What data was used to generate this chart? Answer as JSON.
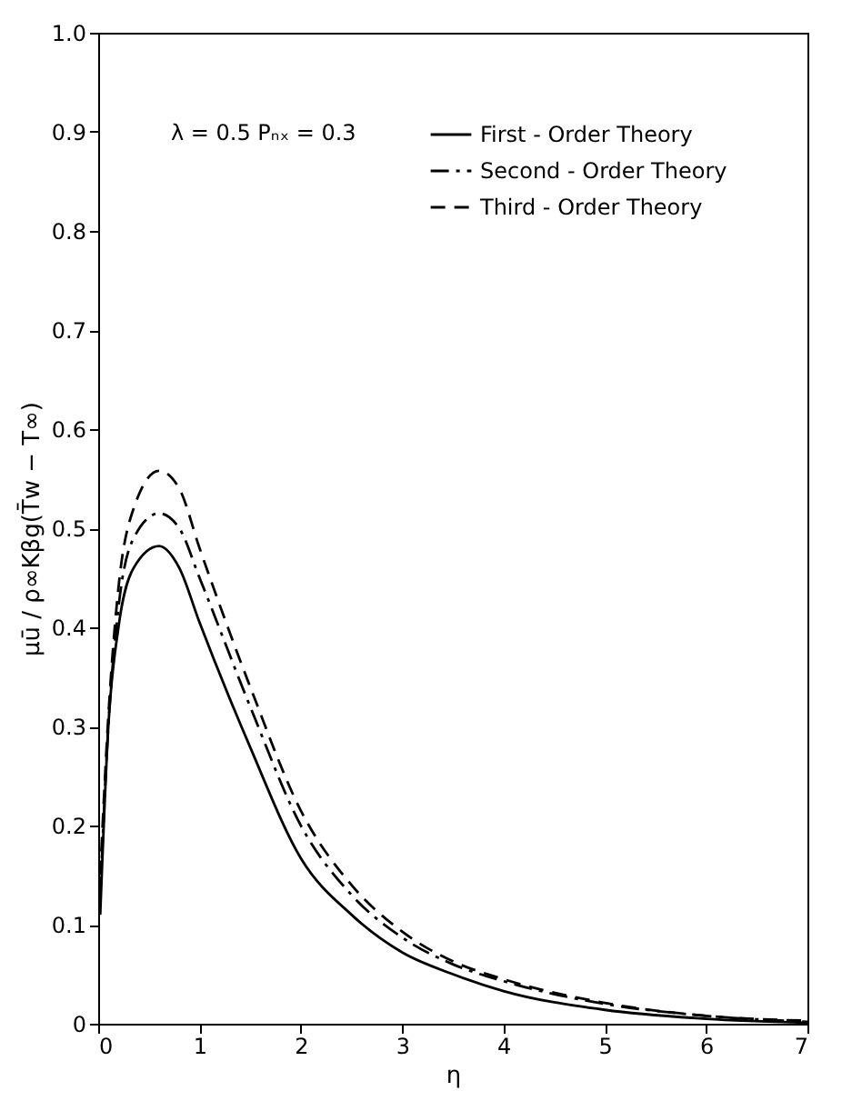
{
  "chart_data": {
    "type": "line",
    "xlabel": "η",
    "ylabel": "μū / ρ∞Kβg(T̄w − T∞)",
    "annotations": [
      "λ = 0.5   Pₙₓ = 0.3"
    ],
    "xlim": [
      0,
      7
    ],
    "ylim": [
      0,
      1
    ],
    "xticks": [
      0,
      1,
      2,
      3,
      4,
      5,
      6,
      7
    ],
    "yticks": [
      0,
      0.1,
      0.2,
      0.3,
      0.4,
      0.5,
      0.6,
      0.7,
      0.8,
      0.9,
      {
        "value": 1,
        "label": "1.0"
      }
    ],
    "legend": "top right",
    "marker": "none",
    "x": [
      0.02,
      0.1,
      0.2,
      0.35,
      0.6,
      0.8,
      1,
      1.5,
      2,
      2.5,
      3,
      3.5,
      4,
      5,
      6,
      7
    ],
    "series": [
      {
        "name": "First - Order Theory",
        "color": "#000000",
        "line_style": "solid",
        "values": [
          0.11,
          0.3,
          0.4,
          0.46,
          0.482,
          0.46,
          0.405,
          0.279,
          0.167,
          0.11,
          0.072,
          0.05,
          0.033,
          0.014,
          0.005,
          0.001
        ]
      },
      {
        "name": "Second - Order Theory",
        "color": "#000000",
        "line_style": "dashdot",
        "values": [
          0.13,
          0.3,
          0.42,
          0.49,
          0.515,
          0.5,
          0.45,
          0.32,
          0.2,
          0.13,
          0.087,
          0.06,
          0.043,
          0.02,
          0.008,
          0.002
        ]
      },
      {
        "name": "Third - Order Theory",
        "color": "#000000",
        "line_style": "dashed",
        "values": [
          0.15,
          0.31,
          0.44,
          0.52,
          0.558,
          0.54,
          0.48,
          0.34,
          0.215,
          0.14,
          0.093,
          0.063,
          0.045,
          0.021,
          0.008,
          0.003
        ]
      }
    ]
  }
}
